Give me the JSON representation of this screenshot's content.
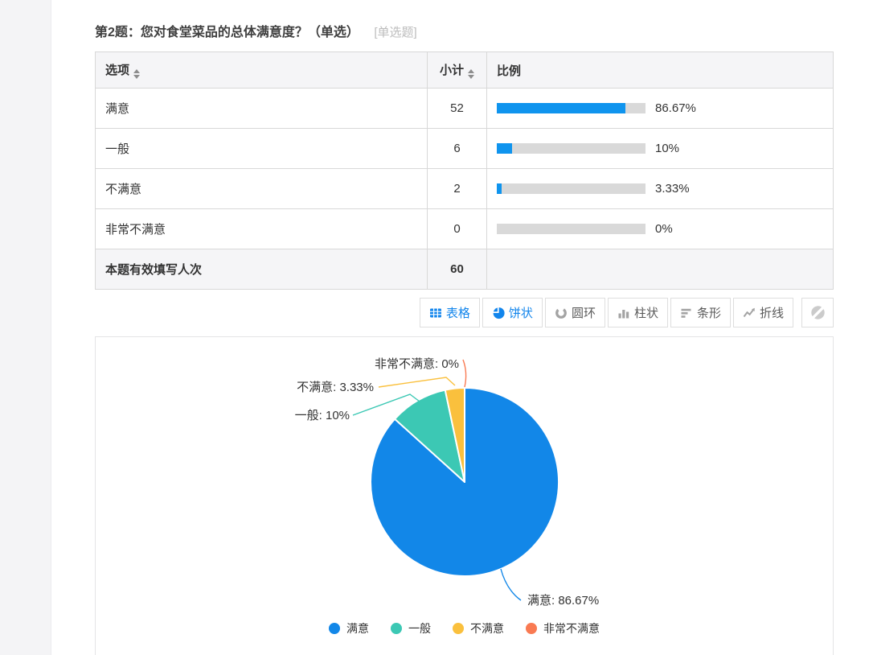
{
  "question": {
    "title": "第2题：您对食堂菜品的总体满意度？（单选）",
    "tag": "[单选题]"
  },
  "table": {
    "headers": {
      "option": "选项",
      "count": "小计",
      "ratio": "比例"
    },
    "rows": [
      {
        "option": "满意",
        "count": "52",
        "percent": 86.67,
        "percent_label": "86.67%"
      },
      {
        "option": "一般",
        "count": "6",
        "percent": 10,
        "percent_label": "10%"
      },
      {
        "option": "不满意",
        "count": "2",
        "percent": 3.33,
        "percent_label": "3.33%"
      },
      {
        "option": "非常不满意",
        "count": "0",
        "percent": 0,
        "percent_label": "0%"
      }
    ],
    "footer": {
      "label": "本题有效填写人次",
      "count": "60"
    }
  },
  "toolbar": {
    "buttons": [
      {
        "label": "表格",
        "icon": "table-icon",
        "active": true
      },
      {
        "label": "饼状",
        "icon": "pie-chart-icon",
        "active": true
      },
      {
        "label": "圆环",
        "icon": "donut-chart-icon",
        "active": false
      },
      {
        "label": "柱状",
        "icon": "column-chart-icon",
        "active": false
      },
      {
        "label": "条形",
        "icon": "bar-chart-icon",
        "active": false
      },
      {
        "label": "折线",
        "icon": "line-chart-icon",
        "active": false
      }
    ],
    "extra_button": {
      "icon": "slashed-circle-icon"
    }
  },
  "chart_data": {
    "type": "pie",
    "categories": [
      "满意",
      "一般",
      "不满意",
      "非常不满意"
    ],
    "values": [
      52,
      6,
      2,
      0
    ],
    "percents": [
      86.67,
      10,
      3.33,
      0
    ],
    "colors": [
      "#1287e8",
      "#3cc8b4",
      "#fac03d",
      "#f97a52"
    ],
    "labels": [
      "满意: 86.67%",
      "一般: 10%",
      "不满意: 3.33%",
      "非常不满意: 0%"
    ],
    "legend": [
      "满意",
      "一般",
      "不满意",
      "非常不满意"
    ],
    "legend_position": "bottom",
    "start_angle": "top",
    "direction": "clockwise"
  },
  "colors": {
    "accent_blue": "#1285ec",
    "bar_fill": "#0f94ee",
    "bar_track": "#d9d9d9",
    "header_bg": "#f5f5f7",
    "border": "#d8d8d8",
    "muted_text": "#bcbcbc"
  }
}
